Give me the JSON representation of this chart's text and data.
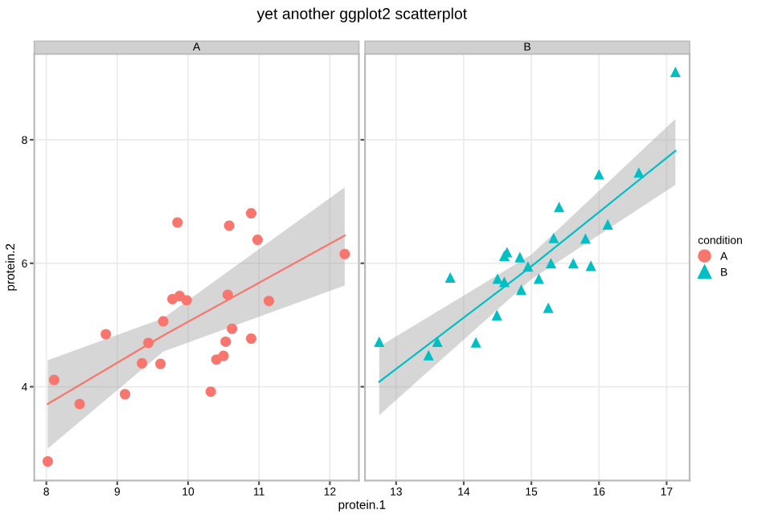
{
  "chart_data": [
    {
      "type": "scatter",
      "title": "yet another ggplot2 scatterplot",
      "subtitle": "A",
      "xlabel": "protein.1",
      "ylabel": "protein.2",
      "xlim": [
        7.83,
        12.41
      ],
      "ylim": [
        2.48,
        9.39
      ],
      "xticks": [
        8,
        9,
        10,
        11,
        12
      ],
      "yticks": [
        4,
        6,
        8
      ],
      "grid": true,
      "legend": "right",
      "legend_title": "condition",
      "series": [
        {
          "name": "A",
          "color": "#f8766d",
          "marker": "circle",
          "x": [
            8.02,
            8.11,
            8.47,
            8.84,
            9.11,
            9.35,
            9.44,
            9.61,
            9.65,
            9.78,
            9.85,
            9.88,
            9.98,
            10.32,
            10.4,
            10.5,
            10.53,
            10.56,
            10.58,
            10.62,
            10.89,
            10.89,
            10.98,
            11.14,
            12.21
          ],
          "values": [
            2.79,
            4.11,
            3.72,
            4.85,
            3.88,
            4.38,
            4.71,
            4.37,
            5.06,
            5.42,
            6.66,
            5.47,
            5.4,
            3.92,
            4.44,
            4.5,
            4.73,
            5.49,
            6.61,
            4.94,
            4.78,
            6.81,
            6.38,
            5.39,
            6.15
          ]
        },
        {
          "type": "line",
          "color": "#f8766d",
          "x": [
            8.02,
            9.65,
            12.21
          ],
          "values": [
            3.72,
            4.83,
            6.45
          ],
          "lower": [
            3.0,
            4.57,
            5.64
          ],
          "upper": [
            4.43,
            5.11,
            7.23
          ]
        }
      ]
    },
    {
      "type": "scatter",
      "subtitle": "B",
      "xlim": [
        12.54,
        17.34
      ],
      "ylim": [
        2.48,
        9.39
      ],
      "xticks": [
        13,
        14,
        15,
        16,
        17
      ],
      "yticks": [
        4,
        6,
        8
      ],
      "grid": true,
      "tick_labels": "x",
      "legend": "right",
      "series": [
        {
          "name": "B",
          "color": "#00bfc4",
          "marker": "triangle",
          "x": [
            12.75,
            13.48,
            13.61,
            13.8,
            14.18,
            14.49,
            14.5,
            14.6,
            14.6,
            14.64,
            14.83,
            14.85,
            14.95,
            15.11,
            15.25,
            15.29,
            15.33,
            15.41,
            15.62,
            15.8,
            15.88,
            16.0,
            16.13,
            16.59,
            17.13
          ],
          "values": [
            4.73,
            4.51,
            4.73,
            5.77,
            4.72,
            5.16,
            5.75,
            5.7,
            6.12,
            6.18,
            6.1,
            5.57,
            5.95,
            5.75,
            5.28,
            6.0,
            6.41,
            6.91,
            6.0,
            6.4,
            5.96,
            7.44,
            6.63,
            7.47,
            9.1
          ]
        },
        {
          "type": "line",
          "color": "#00bfc4",
          "x": [
            12.75,
            15.0,
            17.13
          ],
          "values": [
            4.08,
            5.95,
            7.82
          ],
          "lower": [
            3.54,
            5.74,
            7.27
          ],
          "upper": [
            4.65,
            6.14,
            8.34
          ]
        }
      ]
    }
  ]
}
